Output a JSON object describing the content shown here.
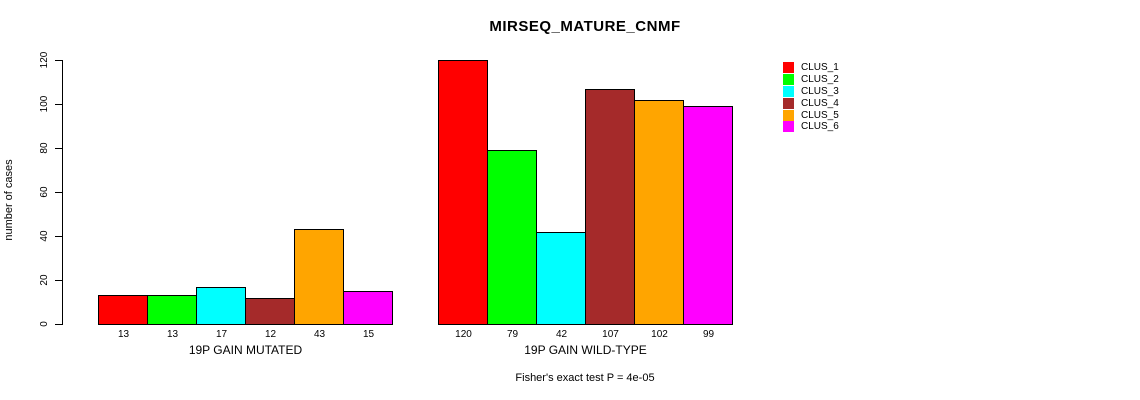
{
  "title": "MIRSEQ_MATURE_CNMF",
  "y_axis": {
    "label": "number of cases",
    "ticks": [
      0,
      20,
      40,
      60,
      80,
      100,
      120
    ],
    "max": 120
  },
  "annotation": "Fisher's exact test P = 4e-05",
  "legend": {
    "position": "right",
    "items": [
      {
        "label": "CLUS_1",
        "color": "#ff0000"
      },
      {
        "label": "CLUS_2",
        "color": "#00ff00"
      },
      {
        "label": "CLUS_3",
        "color": "#00ffff"
      },
      {
        "label": "CLUS_4",
        "color": "#a52a2a"
      },
      {
        "label": "CLUS_5",
        "color": "#ffa500"
      },
      {
        "label": "CLUS_6",
        "color": "#ff00ff"
      }
    ]
  },
  "chart_data": {
    "type": "bar",
    "title": "MIRSEQ_MATURE_CNMF",
    "xlabel": "",
    "ylabel": "number of cases",
    "ylim": [
      0,
      120
    ],
    "yticks": [
      0,
      20,
      40,
      60,
      80,
      100,
      120
    ],
    "grid": false,
    "legend_position": "right",
    "series_names": [
      "CLUS_1",
      "CLUS_2",
      "CLUS_3",
      "CLUS_4",
      "CLUS_5",
      "CLUS_6"
    ],
    "series_colors": [
      "#ff0000",
      "#00ff00",
      "#00ffff",
      "#a52a2a",
      "#ffa500",
      "#ff00ff"
    ],
    "groups": [
      {
        "label": "19P GAIN MUTATED",
        "values": [
          13,
          13,
          17,
          12,
          43,
          15
        ]
      },
      {
        "label": "19P GAIN WILD-TYPE",
        "values": [
          120,
          79,
          42,
          107,
          102,
          99
        ]
      }
    ],
    "bar_value_labels_shown": true,
    "annotation": "Fisher's exact test P = 4e-05"
  }
}
